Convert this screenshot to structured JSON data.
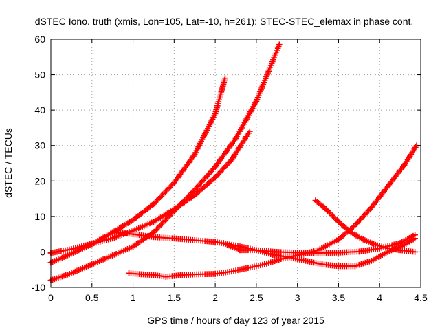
{
  "chart_data": {
    "type": "scatter",
    "title": "dSTEC Iono. truth (xmis, Lon=105, Lat=-10, h=261): STEC-STEC_elemax in phase cont.",
    "xlabel": "GPS time / hours of day 123 of year 2015",
    "ylabel": "dSTEC  / TECUs",
    "xlim": [
      0,
      4.5
    ],
    "ylim": [
      -10,
      60
    ],
    "xticks": [
      "0",
      "0.5",
      "1",
      "1.5",
      "2",
      "2.5",
      "3",
      "3.5",
      "4",
      "4.5"
    ],
    "yticks": [
      "-10",
      "0",
      "10",
      "20",
      "30",
      "40",
      "50",
      "60"
    ],
    "grid": true,
    "marker": "plus",
    "color": "#ff0000",
    "series": [
      {
        "x": [
          0,
          0.25,
          0.5,
          0.75,
          1.0,
          1.25,
          1.5,
          1.75,
          2.0,
          2.12
        ],
        "y": [
          -3,
          -0.5,
          2.2,
          5.5,
          9.0,
          13.5,
          19.5,
          27.5,
          39.0,
          49.0
        ]
      },
      {
        "x": [
          0,
          0.25,
          0.5,
          0.75,
          1.0,
          1.25,
          1.5,
          1.75,
          2.0,
          2.25,
          2.5,
          2.78
        ],
        "y": [
          -8,
          -6,
          -3.5,
          -1.0,
          1.5,
          5.5,
          11.5,
          17.5,
          24.0,
          32.0,
          42.5,
          58.5
        ]
      },
      {
        "x": [
          0,
          0.25,
          0.5,
          0.75,
          1.0,
          1.25,
          1.5,
          1.75,
          2.0,
          2.2,
          2.42
        ],
        "y": [
          -0.3,
          0.8,
          2.3,
          3.8,
          6.0,
          8.5,
          12.0,
          16.0,
          21.0,
          26.0,
          34.0
        ]
      },
      {
        "x": [
          0.75,
          1.0,
          1.25,
          1.5,
          1.75,
          2.0,
          2.25,
          2.5,
          2.75,
          3.0,
          3.25,
          3.5,
          3.75,
          4.0,
          4.25,
          4.43
        ],
        "y": [
          5.5,
          5.0,
          4.2,
          3.8,
          3.3,
          2.8,
          1.8,
          0.5,
          0.0,
          -0.2,
          -0.3,
          -0.2,
          0.1,
          1.0,
          2.5,
          4.8
        ]
      },
      {
        "x": [
          0.95,
          1.1,
          1.25,
          1.4,
          1.6,
          1.8,
          2.0,
          2.2,
          2.4,
          2.6,
          2.8,
          3.0,
          3.25,
          3.5,
          3.7,
          3.9,
          4.1,
          4.3,
          4.45
        ],
        "y": [
          -6.0,
          -6.3,
          -6.5,
          -7.0,
          -6.5,
          -6.3,
          -6.2,
          -5.5,
          -4.5,
          -3.5,
          -2.0,
          -1.0,
          0.5,
          3.5,
          7.5,
          12.5,
          18.5,
          24.5,
          30.0
        ]
      },
      {
        "x": [
          2.1,
          2.3,
          2.5,
          2.7,
          2.9,
          3.1,
          3.3,
          3.5,
          3.7,
          3.9,
          4.1,
          4.3,
          4.43
        ],
        "y": [
          2.5,
          0.5,
          0.5,
          -0.8,
          -1.5,
          -2.5,
          -3.5,
          -4.0,
          -4.0,
          -2.5,
          0.0,
          2.0,
          3.8
        ]
      },
      {
        "x": [
          3.22,
          3.35,
          3.5,
          3.65,
          3.8,
          3.95,
          4.1,
          4.25,
          4.43
        ],
        "y": [
          14.5,
          12.0,
          8.5,
          5.5,
          3.5,
          2.0,
          1.0,
          0.5,
          0.0
        ]
      }
    ]
  }
}
